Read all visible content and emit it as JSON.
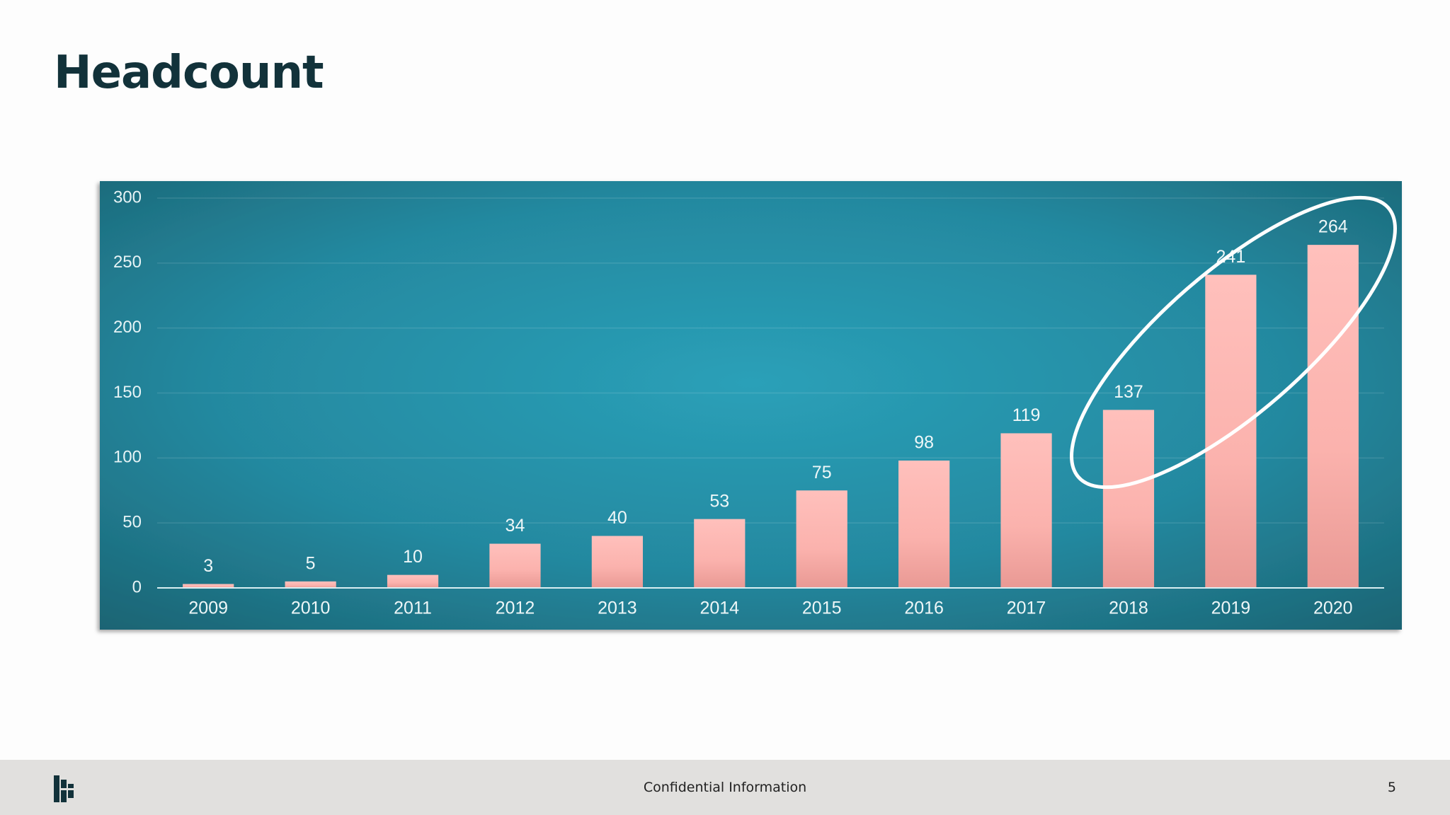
{
  "title": "Headcount",
  "chart_data": {
    "type": "bar",
    "categories": [
      "2009",
      "2010",
      "2011",
      "2012",
      "2013",
      "2014",
      "2015",
      "2016",
      "2017",
      "2018",
      "2019",
      "2020"
    ],
    "values": [
      3,
      5,
      10,
      34,
      40,
      53,
      75,
      98,
      119,
      137,
      241,
      264
    ],
    "color": "#fbb4af",
    "ylim": [
      0,
      300
    ],
    "yticks": [
      0,
      50,
      100,
      150,
      200,
      250,
      300
    ],
    "grid": true
  },
  "footer": {
    "text": "Confidential Information",
    "page": 5
  }
}
